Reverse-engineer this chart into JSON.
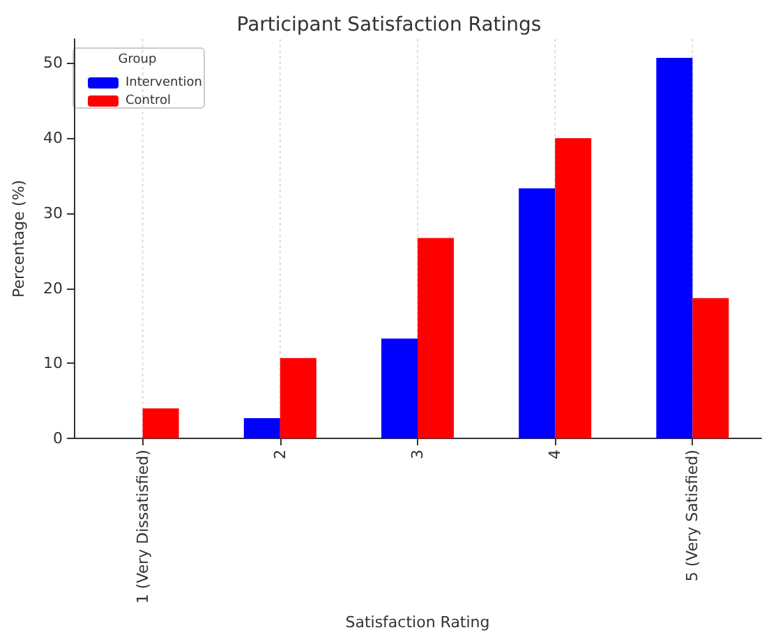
{
  "chart_data": {
    "type": "bar",
    "title": "Participant Satisfaction Ratings",
    "xlabel": "Satisfaction Rating",
    "ylabel": "Percentage (%)",
    "legend_title": "Group",
    "categories": [
      "1 (Very Dissatisfied)",
      "2",
      "3",
      "4",
      "5 (Very Satisfied)"
    ],
    "series": [
      {
        "name": "Intervention",
        "color": "#0000ff",
        "values": [
          0,
          2.7,
          13.3,
          33.3,
          50.7
        ]
      },
      {
        "name": "Control",
        "color": "#ff0000",
        "values": [
          4,
          10.7,
          26.7,
          40,
          18.7
        ]
      }
    ],
    "ylim": [
      0,
      53.2
    ],
    "yticks": [
      0,
      10,
      20,
      30,
      40,
      50
    ],
    "grid": "x",
    "legend": "top left"
  }
}
